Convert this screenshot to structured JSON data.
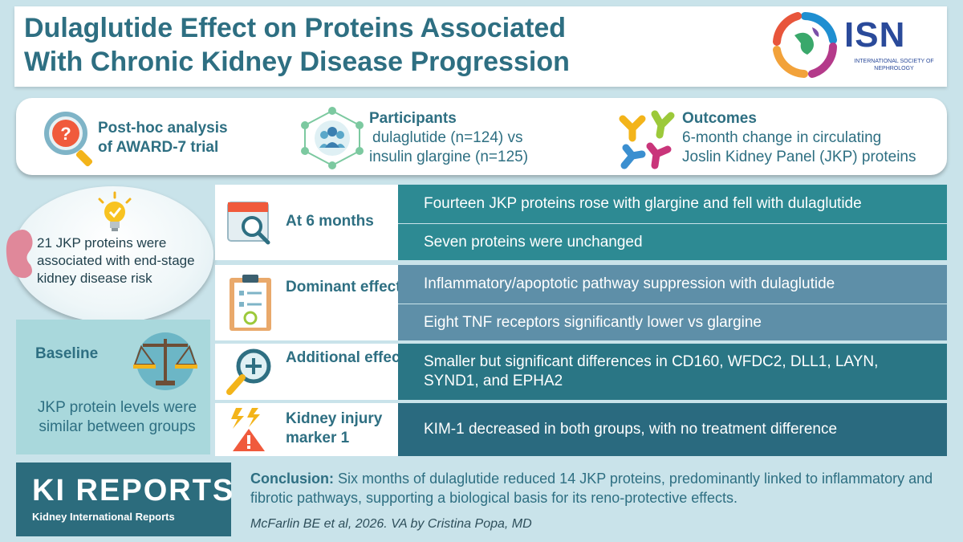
{
  "title": {
    "line1": "Dulaglutide Effect on Proteins Associated",
    "line2": "With Chronic Kidney Disease Progression"
  },
  "logo": {
    "name": "ISN",
    "subtitle": "INTERNATIONAL SOCIETY OF NEPHROLOGY"
  },
  "info": {
    "study": {
      "line1": "Post-hoc analysis",
      "line2": "of AWARD-7 trial",
      "icon": "question-magnifier-icon"
    },
    "participants": {
      "label": "Participants",
      "line1": "dulaglutide (n=124) vs",
      "line2": "insulin glargine (n=125)",
      "icon": "people-network-icon"
    },
    "outcomes": {
      "label": "Outcomes",
      "line1": "6-month change in circulating",
      "line2": "Joslin Kidney Panel (JKP) proteins",
      "icon": "antibody-icon"
    }
  },
  "left": {
    "bubble_text": "21 JKP proteins were associated with end-stage kidney disease risk",
    "baseline_title": "Baseline",
    "baseline_text": "JKP protein levels were similar between groups"
  },
  "rows": [
    {
      "label": "At 6 months",
      "icon": "calendar-magnifier-icon",
      "cells": [
        "Fourteen JKP proteins rose with glargine and fell with dulaglutide",
        "Seven proteins were unchanged"
      ]
    },
    {
      "label": "Dominant effect",
      "icon": "clipboard-icon",
      "cells": [
        "Inflammatory/apoptotic pathway suppression with dulaglutide",
        "Eight TNF receptors significantly lower vs glargine"
      ]
    },
    {
      "label": "Additional effect",
      "icon": "magnifier-plus-icon",
      "cells": [
        "Smaller but significant differences in CD160, WFDC2, DLL1, LAYN, SYND1, and EPHA2"
      ]
    },
    {
      "label": "Kidney injury marker 1",
      "icon": "warning-lightning-icon",
      "cells": [
        "KIM-1 decreased in both groups, with no treatment difference"
      ]
    }
  ],
  "footer": {
    "journal": "KI REPORTS",
    "journal_sub": "Kidney International Reports",
    "conclusion_label": "Conclusion:",
    "conclusion_text": "Six months of dulaglutide reduced 14 JKP proteins, predominantly linked to inflammatory and fibrotic pathways, supporting a biological basis for its reno-protective effects.",
    "credit": "McFarlin BE et al, 2026. VA by Cristina Popa, MD"
  },
  "colors": {
    "title": "#2e6f82",
    "teal_cell": "#2d8a93",
    "steel_cell": "#5e8fa8",
    "background": "#c9e3ea",
    "journal_box": "#2c6c7d"
  }
}
